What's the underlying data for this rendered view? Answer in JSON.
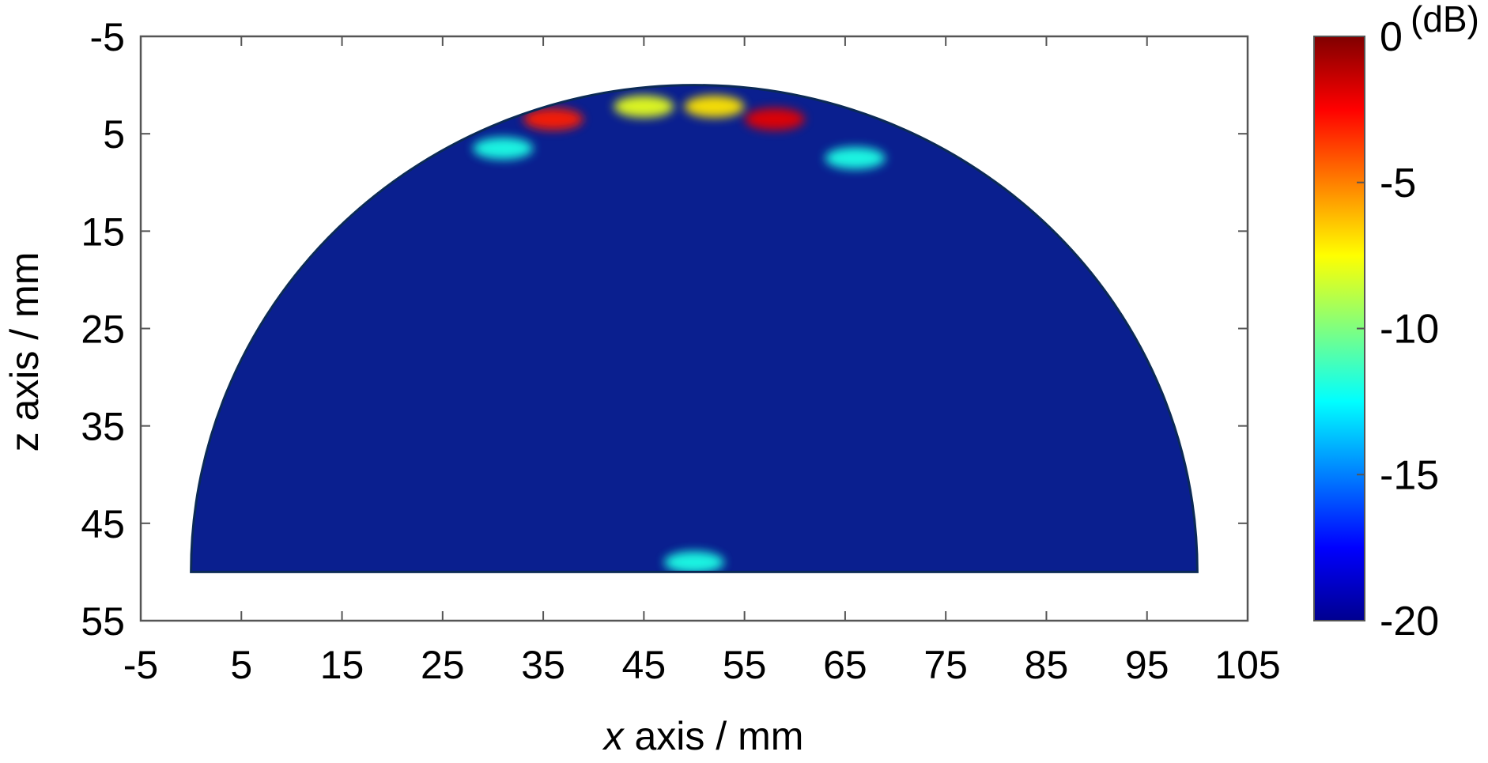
{
  "chart_data": {
    "type": "heatmap",
    "xlabel_var": "x",
    "xlabel_rest": " axis / mm",
    "ylabel": "z axis / mm",
    "xlim": [
      -5,
      105
    ],
    "ylim": [
      -5,
      55
    ],
    "y_reversed": true,
    "x_ticks": [
      -5,
      5,
      15,
      25,
      35,
      45,
      55,
      65,
      75,
      85,
      95,
      105
    ],
    "y_ticks": [
      -5,
      5,
      15,
      25,
      35,
      45,
      55
    ],
    "x_tick_labels": [
      "-5",
      "5",
      "15",
      "25",
      "35",
      "45",
      "55",
      "65",
      "75",
      "85",
      "95",
      "105"
    ],
    "y_tick_labels": [
      "-5",
      "5",
      "15",
      "25",
      "35",
      "45",
      "55"
    ],
    "image_region": {
      "shape": "half-disk",
      "center_x": 50,
      "center_z": 50,
      "radius": 50,
      "flat_edge_z": 50
    },
    "hotspots": [
      {
        "x": 36,
        "z": 3.5,
        "level_db": -3
      },
      {
        "x": 58,
        "z": 3.5,
        "level_db": -2
      },
      {
        "x": 45,
        "z": 2.2,
        "level_db": -8
      },
      {
        "x": 52,
        "z": 2.2,
        "level_db": -7
      },
      {
        "x": 31,
        "z": 6.5,
        "level_db": -12
      },
      {
        "x": 66,
        "z": 7.5,
        "level_db": -12
      },
      {
        "x": 50,
        "z": 49,
        "level_db": -12
      }
    ],
    "colorbar": {
      "colormap": "jet",
      "range_db": [
        -20,
        0
      ],
      "ticks": [
        0,
        -5,
        -10,
        -15,
        -20
      ],
      "tick_labels": [
        "0",
        "-5",
        "-10",
        "-15",
        "-20"
      ],
      "unit": "(dB)"
    },
    "colors": {
      "background_fill": "#0a1f8f",
      "frame": "#555555"
    }
  }
}
